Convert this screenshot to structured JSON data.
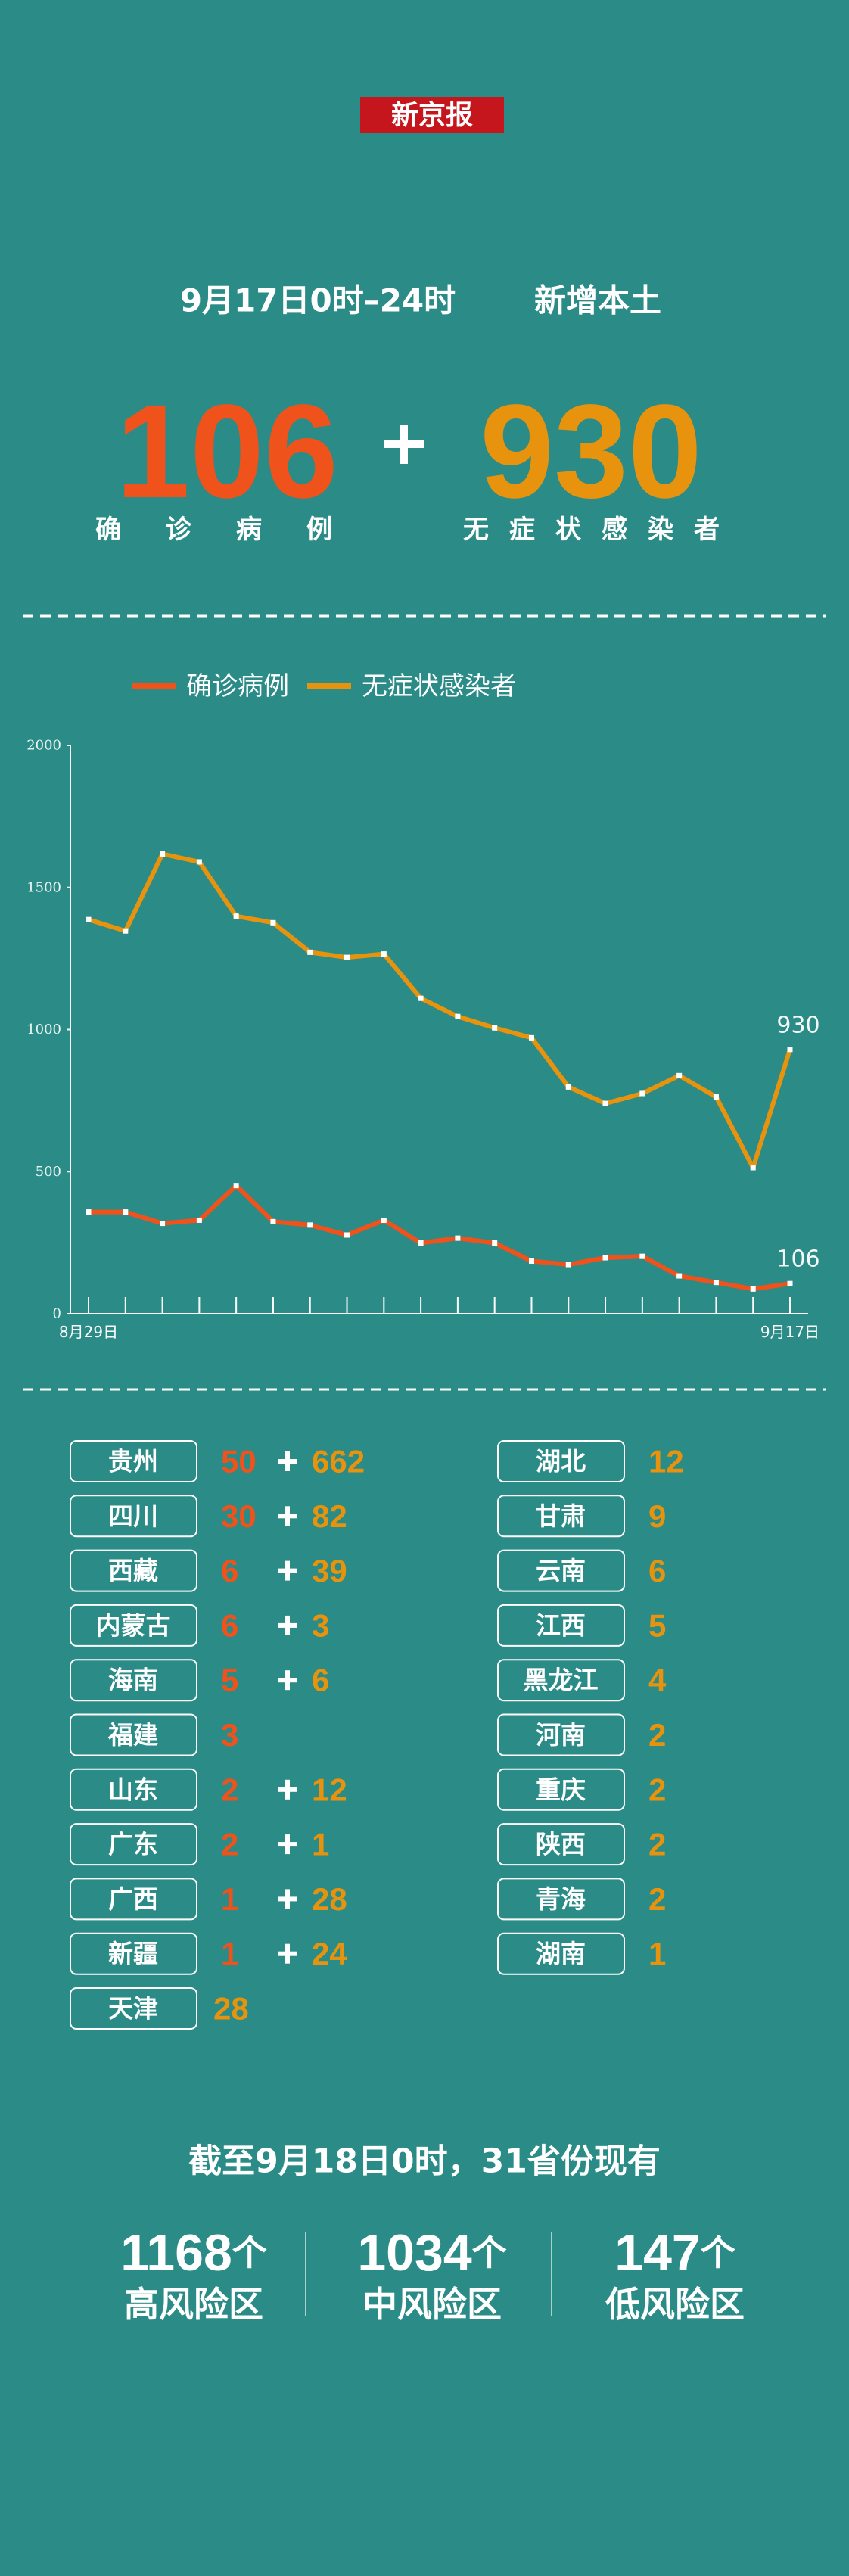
{
  "header": {
    "logo": "新京报",
    "period": "9月17日0时–24时",
    "title": "新增本土",
    "confirmed": {
      "value": 106,
      "label": "确诊病例"
    },
    "asymptomatic": {
      "value": 930,
      "label": "无症状感染者"
    }
  },
  "chart_data": {
    "type": "line",
    "categories": [
      "8月29日",
      null,
      null,
      null,
      null,
      null,
      null,
      null,
      null,
      null,
      null,
      null,
      null,
      null,
      null,
      null,
      null,
      null,
      null,
      "9月17日"
    ],
    "series": [
      {
        "name": "确诊病例",
        "color": "#f0521c",
        "values": [
          358,
          358,
          318,
          329,
          451,
          324,
          312,
          277,
          329,
          249,
          266,
          249,
          185,
          173,
          197,
          202,
          133,
          110,
          87,
          106
        ]
      },
      {
        "name": "无症状感染者",
        "color": "#e8930d",
        "values": [
          1387,
          1347,
          1618,
          1590,
          1399,
          1376,
          1272,
          1254,
          1266,
          1110,
          1046,
          1006,
          971,
          798,
          740,
          775,
          838,
          763,
          514,
          930
        ]
      }
    ],
    "ylim": [
      0,
      2000
    ],
    "yticks": [
      0,
      500,
      1000,
      1500,
      2000
    ],
    "legend": "top-left",
    "end_labels": true
  },
  "provinces": {
    "left": [
      {
        "name": "贵州",
        "confirmed": 50,
        "asymptomatic": 662
      },
      {
        "name": "四川",
        "confirmed": 30,
        "asymptomatic": 82
      },
      {
        "name": "西藏",
        "confirmed": 6,
        "asymptomatic": 39
      },
      {
        "name": "内蒙古",
        "confirmed": 6,
        "asymptomatic": 3
      },
      {
        "name": "海南",
        "confirmed": 5,
        "asymptomatic": 6
      },
      {
        "name": "福建",
        "confirmed": 3
      },
      {
        "name": "山东",
        "confirmed": 2,
        "asymptomatic": 12
      },
      {
        "name": "广东",
        "confirmed": 2,
        "asymptomatic": 1
      },
      {
        "name": "广西",
        "confirmed": 1,
        "asymptomatic": 28
      },
      {
        "name": "新疆",
        "confirmed": 1,
        "asymptomatic": 24
      },
      {
        "name": "天津",
        "asymptomatic": 28
      }
    ],
    "right": [
      {
        "name": "湖北",
        "asymptomatic": 12
      },
      {
        "name": "甘肃",
        "asymptomatic": 9
      },
      {
        "name": "云南",
        "asymptomatic": 6
      },
      {
        "name": "江西",
        "asymptomatic": 5
      },
      {
        "name": "黑龙江",
        "asymptomatic": 4
      },
      {
        "name": "河南",
        "asymptomatic": 2
      },
      {
        "name": "重庆",
        "asymptomatic": 2
      },
      {
        "name": "陕西",
        "asymptomatic": 2
      },
      {
        "name": "青海",
        "asymptomatic": 2
      },
      {
        "name": "湖南",
        "asymptomatic": 1
      }
    ]
  },
  "summary": {
    "title": "截至9月18日0时，31省份现有",
    "items": [
      {
        "count": 1168,
        "unit": "个",
        "label": "高风险区"
      },
      {
        "count": 1034,
        "unit": "个",
        "label": "中风险区"
      },
      {
        "count": 147,
        "unit": "个",
        "label": "低风险区"
      }
    ]
  }
}
